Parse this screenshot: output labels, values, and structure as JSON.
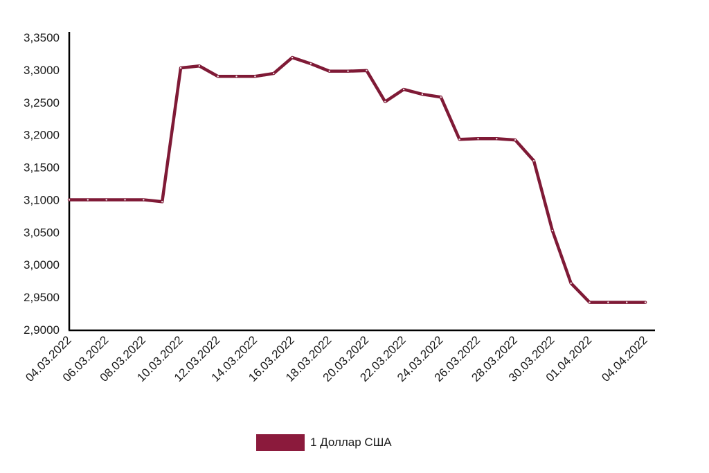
{
  "chart_data": {
    "type": "line",
    "title": "",
    "xlabel": "",
    "ylabel": "",
    "ylim": [
      2.9,
      3.35
    ],
    "grid": false,
    "legend_position": "bottom",
    "y_ticks": [
      "2,9000",
      "2,9500",
      "3,0000",
      "3,0500",
      "3,1000",
      "3,1500",
      "3,2000",
      "3,2500",
      "3,3000",
      "3,3500"
    ],
    "x_tick_labels": [
      "04.03.2022",
      "06.03.2022",
      "08.03.2022",
      "10.03.2022",
      "12.03.2022",
      "14.03.2022",
      "16.03.2022",
      "18.03.2022",
      "20.03.2022",
      "22.03.2022",
      "24.03.2022",
      "26.03.2022",
      "28.03.2022",
      "30.03.2022",
      "01.04.2022",
      "04.04.2022"
    ],
    "x": [
      "04.03.2022",
      "05.03.2022",
      "06.03.2022",
      "07.03.2022",
      "08.03.2022",
      "09.03.2022",
      "10.03.2022",
      "11.03.2022",
      "12.03.2022",
      "13.03.2022",
      "14.03.2022",
      "15.03.2022",
      "16.03.2022",
      "17.03.2022",
      "18.03.2022",
      "19.03.2022",
      "20.03.2022",
      "21.03.2022",
      "22.03.2022",
      "23.03.2022",
      "24.03.2022",
      "25.03.2022",
      "26.03.2022",
      "27.03.2022",
      "28.03.2022",
      "29.03.2022",
      "30.03.2022",
      "31.03.2022",
      "01.04.2022",
      "02.04.2022",
      "03.04.2022",
      "04.04.2022"
    ],
    "series": [
      {
        "name": "1 Доллар США",
        "color": "#8b1a3c",
        "values": [
          3.1,
          3.1,
          3.1,
          3.1,
          3.1,
          3.097,
          3.303,
          3.306,
          3.29,
          3.29,
          3.29,
          3.2945,
          3.319,
          3.3095,
          3.298,
          3.298,
          3.299,
          3.251,
          3.27,
          3.2625,
          3.258,
          3.193,
          3.194,
          3.194,
          3.192,
          3.16,
          3.0525,
          2.9715,
          2.942,
          2.942,
          2.942,
          2.942
        ]
      }
    ]
  },
  "legend": {
    "label": "1 Доллар США",
    "color": "#8b1a3c"
  }
}
